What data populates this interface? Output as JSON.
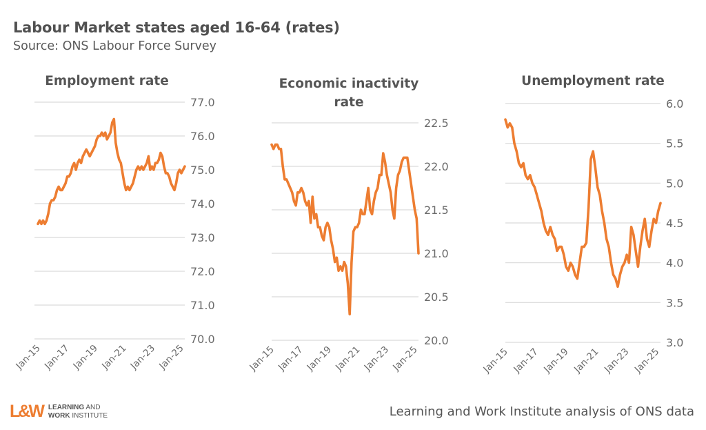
{
  "header": {
    "title": "Labour Market states aged 16-64 (rates)",
    "subtitle": "Source: ONS Labour Force Survey"
  },
  "footer": {
    "logo_mark": "L&W",
    "logo_line1_bold": "LEARNING",
    "logo_line1_rest": " AND",
    "logo_line2_bold": "WORK",
    "logo_line2_rest": " INSTITUTE",
    "credit": "Learning and Work Institute analysis of ONS data"
  },
  "colors": {
    "series": "#ed7d31",
    "grid": "#d9d9d9",
    "logo": "#ed7d31"
  },
  "chart_data": [
    {
      "type": "line",
      "title": "Employment rate",
      "x_tick_labels": [
        "Jan-15",
        "Jan-17",
        "Jan-19",
        "Jan-21",
        "Jan-23",
        "Jan-25"
      ],
      "y_tick_labels": [
        "77.0",
        "76.0",
        "75.0",
        "74.0",
        "73.0",
        "72.0",
        "71.0",
        "70.0"
      ],
      "ylim": [
        70.0,
        77.0
      ],
      "xrange": [
        "Jan-15",
        "Apr-25"
      ],
      "grid": true,
      "legend": "none",
      "series": [
        {
          "name": "Employment rate",
          "values": [
            73.4,
            73.5,
            73.4,
            73.5,
            73.4,
            73.5,
            73.7,
            74.0,
            74.1,
            74.1,
            74.2,
            74.4,
            74.5,
            74.4,
            74.4,
            74.5,
            74.6,
            74.8,
            74.8,
            74.9,
            75.1,
            75.2,
            75.0,
            75.2,
            75.3,
            75.2,
            75.4,
            75.5,
            75.6,
            75.5,
            75.4,
            75.5,
            75.6,
            75.7,
            75.9,
            76.0,
            76.0,
            76.1,
            76.0,
            76.1,
            75.9,
            76.0,
            76.1,
            76.4,
            76.5,
            75.8,
            75.5,
            75.3,
            75.2,
            74.9,
            74.6,
            74.4,
            74.5,
            74.4,
            74.5,
            74.6,
            74.8,
            75.0,
            75.1,
            75.0,
            75.1,
            75.0,
            75.1,
            75.2,
            75.4,
            75.0,
            75.1,
            75.0,
            75.2,
            75.2,
            75.3,
            75.5,
            75.4,
            75.1,
            74.9,
            74.9,
            74.8,
            74.6,
            74.5,
            74.4,
            74.6,
            74.9,
            75.0,
            74.9,
            75.0,
            75.1
          ],
          "start": "Jan-15",
          "frequency": "approx. 1.45-monthly sample points to Apr-25"
        }
      ]
    },
    {
      "type": "line",
      "title": "Economic inactivity rate",
      "x_tick_labels": [
        "Jan-15",
        "Jan-17",
        "Jan-19",
        "Jan-21",
        "Jan-23",
        "Jan-25"
      ],
      "y_tick_labels": [
        "22.5",
        "22.0",
        "21.5",
        "21.0",
        "20.5",
        "20.0"
      ],
      "ylim": [
        20.0,
        22.5
      ],
      "xrange": [
        "Jan-15",
        "Apr-25"
      ],
      "grid": true,
      "legend": "none",
      "series": [
        {
          "name": "Economic inactivity rate",
          "values": [
            22.25,
            22.2,
            22.25,
            22.25,
            22.2,
            22.2,
            22.0,
            21.85,
            21.85,
            21.8,
            21.75,
            21.7,
            21.6,
            21.55,
            21.7,
            21.7,
            21.75,
            21.7,
            21.6,
            21.55,
            21.6,
            21.35,
            21.65,
            21.4,
            21.45,
            21.3,
            21.3,
            21.2,
            21.15,
            21.3,
            21.35,
            21.3,
            21.15,
            21.05,
            20.9,
            20.95,
            20.8,
            20.85,
            20.8,
            20.9,
            20.85,
            20.65,
            20.3,
            20.9,
            21.25,
            21.3,
            21.3,
            21.35,
            21.5,
            21.45,
            21.45,
            21.6,
            21.75,
            21.5,
            21.45,
            21.6,
            21.7,
            21.75,
            21.9,
            21.9,
            22.15,
            22.05,
            21.9,
            21.8,
            21.7,
            21.5,
            21.4,
            21.75,
            21.9,
            21.95,
            22.05,
            22.1,
            22.1,
            22.1,
            21.95,
            21.8,
            21.65,
            21.5,
            21.4,
            21.0
          ],
          "start": "Jan-15",
          "frequency": "approx. 1.55-monthly sample points to Apr-25"
        }
      ]
    },
    {
      "type": "line",
      "title": "Unemployment rate",
      "x_tick_labels": [
        "Jan-15",
        "Jan-17",
        "Jan-19",
        "Jan-21",
        "Jan-23",
        "Jan-25"
      ],
      "y_tick_labels": [
        "6.0",
        "5.5",
        "5.0",
        "4.5",
        "4.0",
        "3.5",
        "3.0"
      ],
      "ylim": [
        3.0,
        6.0
      ],
      "xrange": [
        "Jan-15",
        "Apr-25"
      ],
      "grid": true,
      "legend": "none",
      "series": [
        {
          "name": "Unemployment rate",
          "values": [
            5.8,
            5.7,
            5.75,
            5.7,
            5.5,
            5.4,
            5.25,
            5.2,
            5.25,
            5.1,
            5.05,
            5.1,
            5.0,
            4.95,
            4.85,
            4.75,
            4.65,
            4.5,
            4.4,
            4.35,
            4.45,
            4.35,
            4.3,
            4.15,
            4.2,
            4.2,
            4.1,
            3.95,
            3.9,
            4.0,
            3.95,
            3.85,
            3.8,
            4.0,
            4.2,
            4.2,
            4.25,
            4.7,
            5.3,
            5.4,
            5.2,
            4.95,
            4.85,
            4.65,
            4.5,
            4.3,
            4.2,
            4.0,
            3.85,
            3.8,
            3.7,
            3.85,
            3.95,
            4.0,
            4.1,
            4.0,
            4.45,
            4.35,
            4.15,
            3.95,
            4.2,
            4.4,
            4.55,
            4.3,
            4.2,
            4.4,
            4.55,
            4.5,
            4.65,
            4.75
          ],
          "start": "Jan-15",
          "frequency": "approx. 1.75-monthly sample points to Apr-25"
        }
      ]
    }
  ]
}
